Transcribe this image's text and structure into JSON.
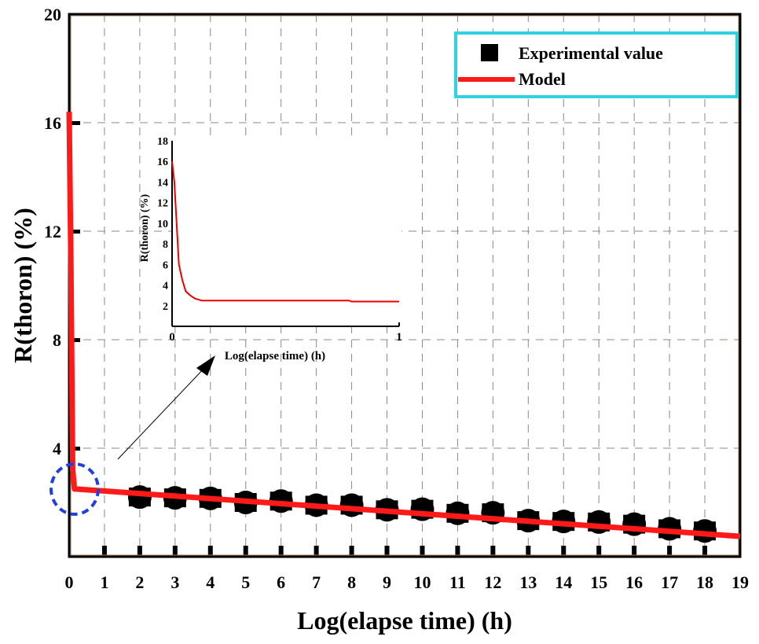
{
  "chart_data": {
    "type": "scatter",
    "title": "",
    "xlabel": "Log(elapse time) (h)",
    "ylabel": "R(thoron) (%)",
    "xlim": [
      0,
      19
    ],
    "ylim": [
      0,
      20
    ],
    "xticks": [
      0,
      1,
      2,
      3,
      4,
      5,
      6,
      7,
      8,
      9,
      10,
      11,
      12,
      13,
      14,
      15,
      16,
      17,
      18,
      19
    ],
    "yticks": [
      4,
      8,
      12,
      16,
      20
    ],
    "grid": true,
    "legend_position": "top-right",
    "colors": {
      "experimental": "#000000",
      "model": "#ff1a1a",
      "legend_border": "#2fd3e0",
      "highlight": "#1f3fe0",
      "grid": "#888888"
    },
    "series": [
      {
        "name": "Experimental value",
        "type": "scatter",
        "x": [
          2,
          3,
          4,
          5,
          6,
          7,
          8,
          9,
          10,
          11,
          12,
          13,
          14,
          15,
          16,
          17,
          18
        ],
        "y": [
          2.2,
          2.17,
          2.15,
          2.0,
          2.05,
          1.9,
          1.9,
          1.73,
          1.75,
          1.6,
          1.62,
          1.33,
          1.3,
          1.28,
          1.2,
          1.03,
          0.95
        ]
      },
      {
        "name": "Model",
        "type": "line",
        "x": [
          0,
          0.05,
          0.1,
          0.15,
          19
        ],
        "y": [
          16.4,
          10.7,
          3.2,
          2.5,
          0.75
        ]
      }
    ],
    "inset": {
      "type": "line",
      "xlabel": "Log(elapse time) (h)",
      "ylabel": "R(thoron) (%)",
      "xlim": [
        0,
        1
      ],
      "ylim": [
        0,
        18
      ],
      "xticks": [
        0,
        1
      ],
      "yticks": [
        2,
        4,
        6,
        8,
        10,
        12,
        14,
        16,
        18
      ],
      "series": [
        {
          "name": "Model",
          "x": [
            0,
            0.01,
            0.02,
            0.03,
            0.045,
            0.06,
            0.08,
            0.1,
            0.13,
            0.78,
            0.79,
            1.0
          ],
          "y": [
            16,
            14,
            10,
            6,
            4.5,
            3.4,
            3.0,
            2.7,
            2.5,
            2.5,
            2.4,
            2.4
          ]
        }
      ]
    }
  }
}
